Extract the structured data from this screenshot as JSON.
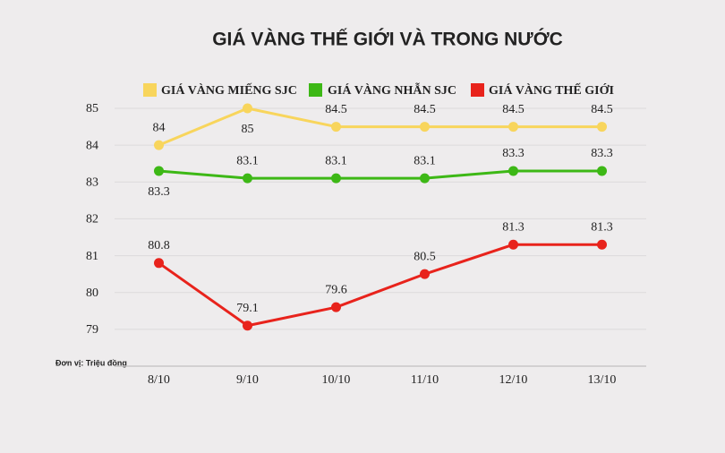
{
  "chart_data": {
    "type": "line",
    "title": "GIÁ VÀNG THẾ GIỚI VÀ TRONG NƯỚC",
    "unit_note": "Đơn vị: Triệu đồng",
    "categories": [
      "8/10",
      "9/10",
      "10/10",
      "11/10",
      "12/10",
      "13/10"
    ],
    "series": [
      {
        "name": "GIÁ VÀNG MIẾNG SJC",
        "color": "#f8d55c",
        "values": [
          84,
          85,
          84.5,
          84.5,
          84.5,
          84.5
        ]
      },
      {
        "name": "GIÁ VÀNG NHẪN SJC",
        "color": "#3db816",
        "values": [
          83.3,
          83.1,
          83.1,
          83.1,
          83.3,
          83.3
        ]
      },
      {
        "name": "GIÁ VÀNG THẾ GIỚI",
        "color": "#e8231c",
        "values": [
          80.8,
          79.1,
          79.6,
          80.5,
          81.3,
          81.3
        ]
      }
    ],
    "ylim": [
      78,
      85
    ],
    "yticks": [
      79,
      80,
      81,
      82,
      83,
      84,
      85
    ],
    "grid": true
  }
}
